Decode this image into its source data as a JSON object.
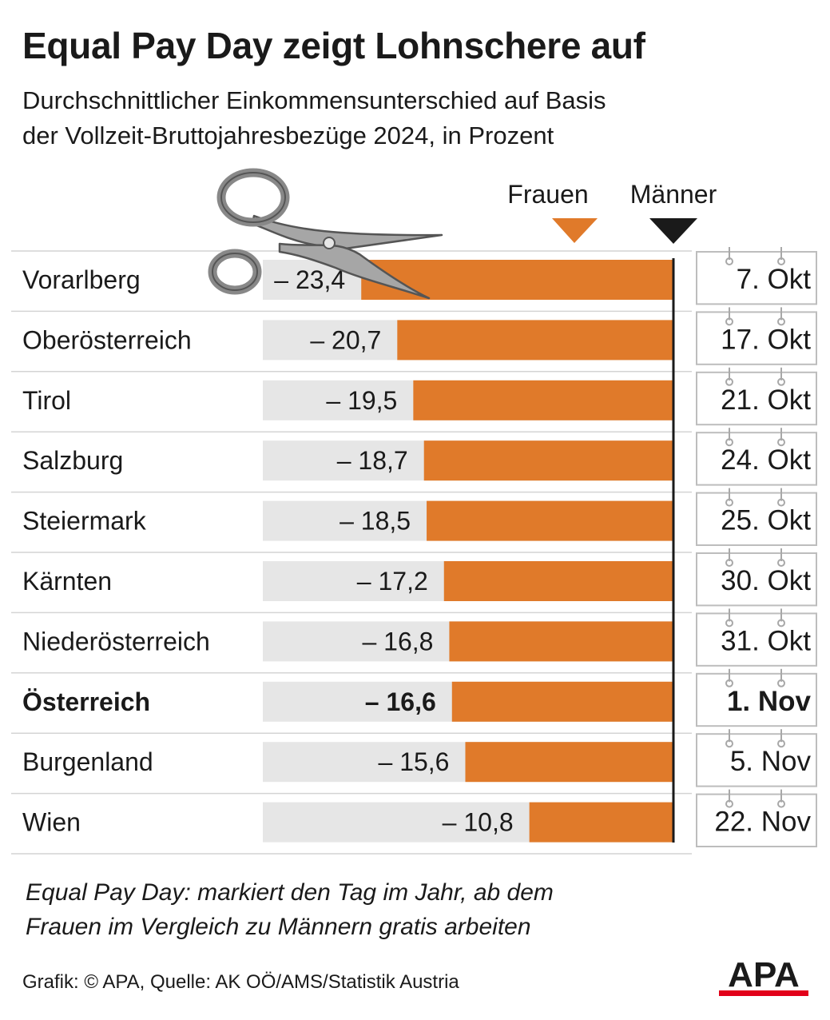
{
  "header": {
    "title": "Equal Pay Day zeigt Lohnschere auf",
    "subtitle_line1": "Durchschnittlicher Einkommensunterschied auf Basis",
    "subtitle_line2": "der Vollzeit-Bruttojahresbezüge 2024, in Prozent"
  },
  "chart_data": {
    "type": "bar",
    "orientation": "horizontal",
    "legend": [
      {
        "label": "Frauen",
        "color": "#e07a2a"
      },
      {
        "label": "Männer",
        "color": "#1a1a1a"
      }
    ],
    "categories": [
      "Vorarlberg",
      "Oberösterreich",
      "Tirol",
      "Salzburg",
      "Steiermark",
      "Kärnten",
      "Niederösterreich",
      "Österreich",
      "Burgenland",
      "Wien"
    ],
    "values": [
      -23.4,
      -20.7,
      -19.5,
      -18.7,
      -18.5,
      -17.2,
      -16.8,
      -16.6,
      -15.6,
      -10.8
    ],
    "value_labels": [
      "– 23,4",
      "– 20,7",
      "– 19,5",
      "– 18,7",
      "– 18,5",
      "– 17,2",
      "– 16,8",
      "– 16,6",
      "– 15,6",
      "– 10,8"
    ],
    "dates": [
      "7. Okt",
      "17. Okt",
      "21. Okt",
      "24. Okt",
      "25. Okt",
      "30. Okt",
      "31. Okt",
      "1. Nov",
      "5. Nov",
      "22. Nov"
    ],
    "highlight": [
      "Österreich"
    ],
    "xlim": [
      -100,
      0
    ],
    "colors": {
      "bar": "#e07a2a",
      "track": "#e6e6e6",
      "baseline": "#1a1a1a"
    }
  },
  "footer": {
    "note_line1": "Equal Pay Day: markiert den Tag im Jahr, ab dem",
    "note_line2": "Frauen im Vergleich zu Männern gratis arbeiten",
    "source": "Grafik: © APA, Quelle: AK OÖ/AMS/Statistik Austria",
    "logo_text": "APA"
  }
}
